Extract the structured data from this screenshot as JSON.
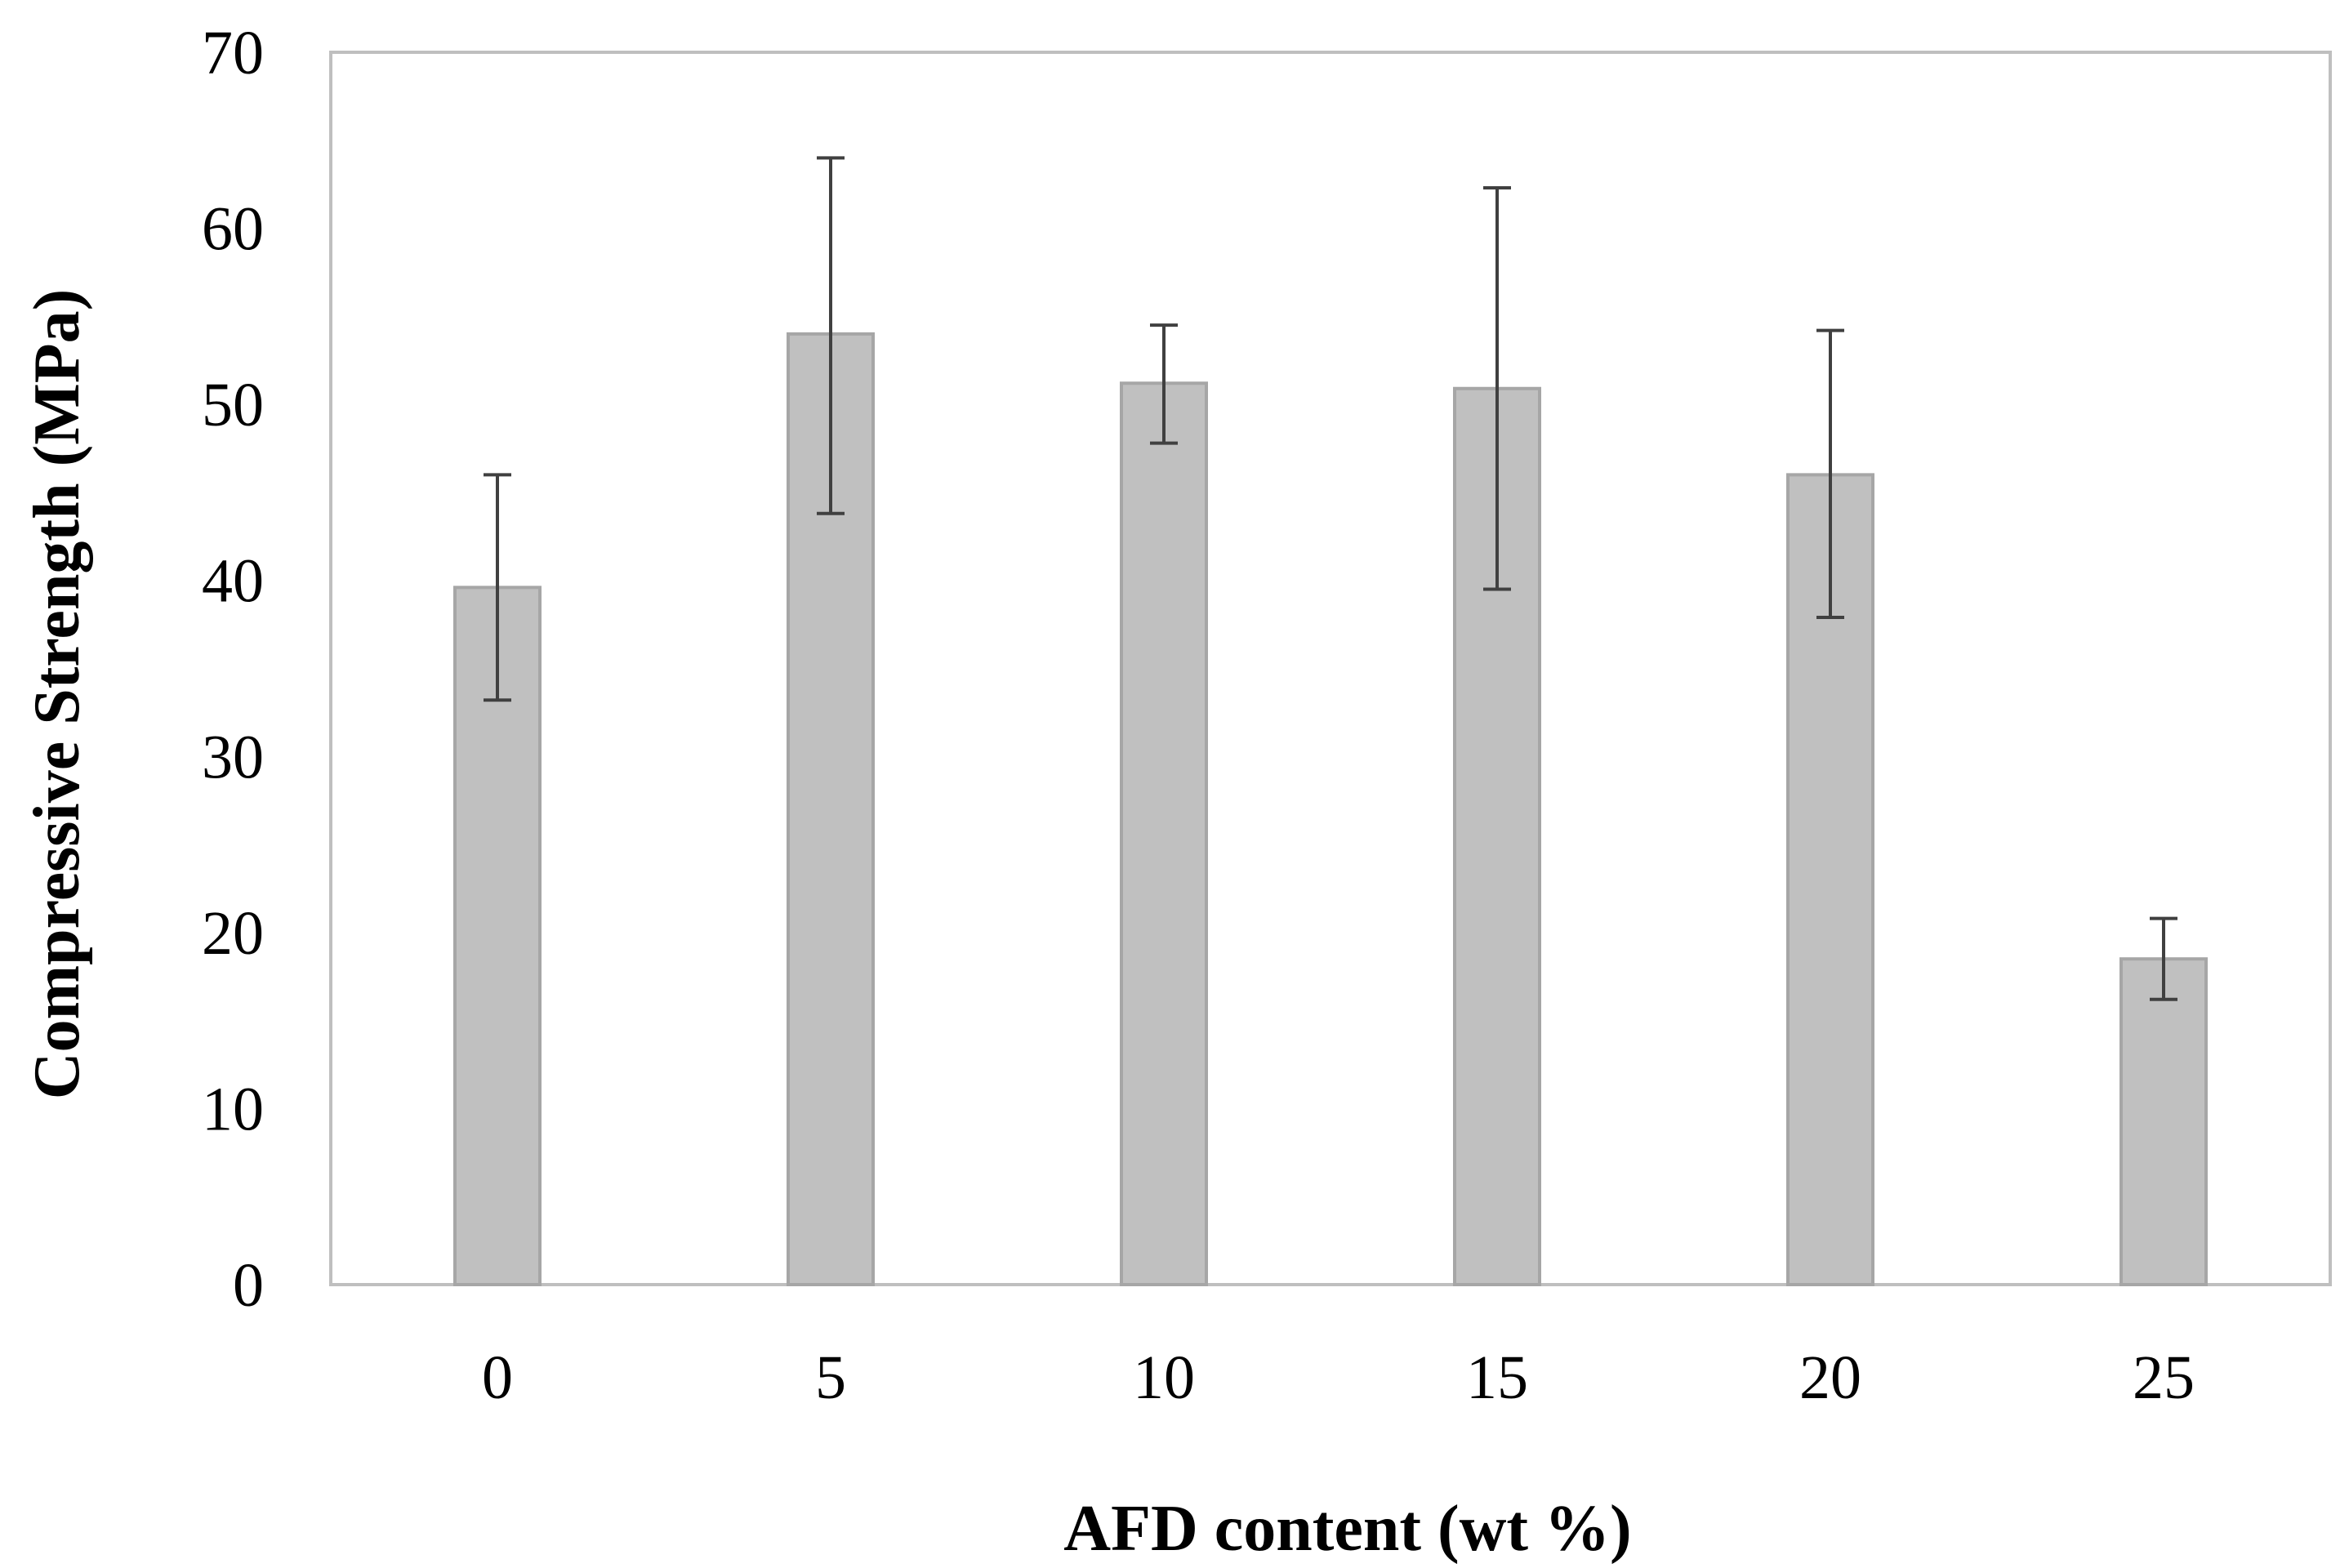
{
  "chart_data": {
    "type": "bar",
    "title": "",
    "xlabel": "AFD content (wt %)",
    "ylabel": "Compressive Strength (MPa)",
    "categories": [
      "0",
      "5",
      "10",
      "15",
      "20",
      "25"
    ],
    "values": [
      39.6,
      54.0,
      51.2,
      50.9,
      46.0,
      18.5
    ],
    "error_low": [
      33.2,
      43.8,
      47.8,
      39.5,
      37.9,
      16.2
    ],
    "error_high": [
      46.0,
      64.0,
      54.5,
      62.3,
      54.2,
      20.8
    ],
    "ylim": [
      0,
      70
    ],
    "yticks": [
      0,
      10,
      20,
      30,
      40,
      50,
      60,
      70
    ],
    "grid": false,
    "legend": "none",
    "colors": {
      "bar_fill": "#c0c0c0",
      "bar_edge": "#a6a6a6",
      "error_bar": "#404040",
      "frame": "#bfbfbf"
    }
  }
}
